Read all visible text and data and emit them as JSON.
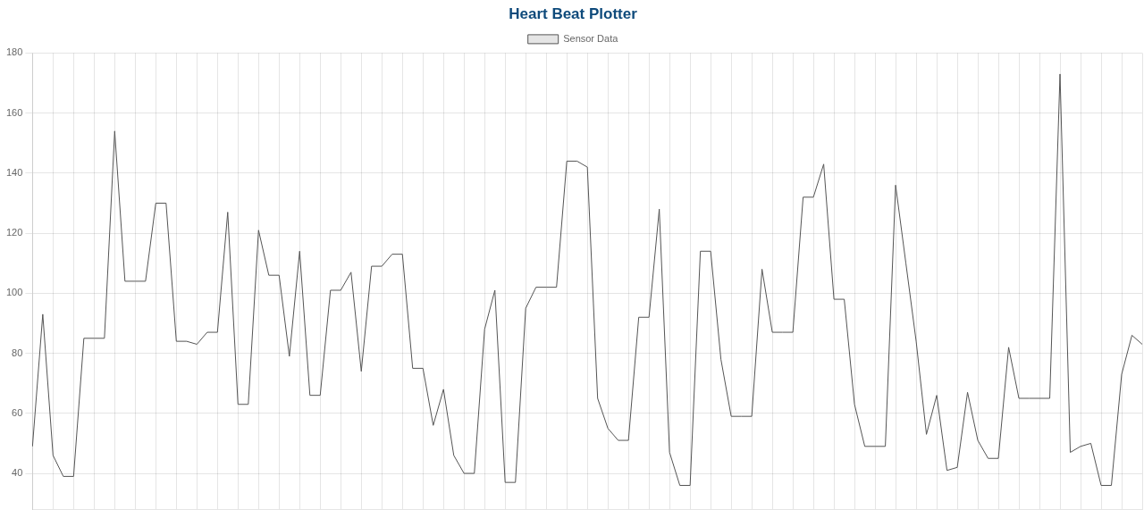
{
  "chart_data": {
    "type": "line",
    "title": "Heart Beat Plotter",
    "categories": [
      null,
      null,
      null,
      null,
      null,
      null,
      null,
      null,
      null,
      null,
      null,
      null,
      null,
      null,
      null,
      null,
      null,
      null,
      null,
      null,
      null,
      null,
      null,
      null,
      null,
      null,
      null,
      null,
      null,
      null,
      null,
      null,
      null,
      null,
      null,
      null,
      null,
      null,
      null,
      null,
      null,
      null,
      null,
      null,
      null,
      null,
      null,
      null,
      null,
      null,
      null,
      null,
      null,
      null,
      null,
      null,
      null,
      null,
      null,
      null,
      null,
      null,
      null,
      null,
      null,
      null,
      null,
      null,
      null,
      null,
      null,
      null,
      null,
      null,
      null,
      null,
      null,
      null,
      null,
      null,
      null,
      null,
      null,
      null,
      null,
      null,
      null,
      null,
      null,
      null,
      null,
      null,
      null,
      null,
      null,
      null,
      null,
      null,
      null,
      null,
      null,
      null,
      null,
      null,
      null,
      null,
      null,
      null,
      null
    ],
    "series": [
      {
        "name": "Sensor Data",
        "color": "#555555",
        "values": [
          49,
          93,
          46,
          39,
          39,
          85,
          85,
          85,
          154,
          104,
          104,
          104,
          130,
          130,
          84,
          84,
          83,
          87,
          87,
          127,
          63,
          63,
          121,
          106,
          106,
          79,
          114,
          66,
          66,
          101,
          101,
          107,
          74,
          109,
          109,
          113,
          113,
          75,
          75,
          56,
          68,
          46,
          40,
          40,
          88,
          101,
          37,
          37,
          95,
          102,
          102,
          102,
          144,
          144,
          142,
          65,
          55,
          51,
          51,
          92,
          92,
          128,
          47,
          36,
          36,
          114,
          114,
          78,
          59,
          59,
          59,
          108,
          87,
          87,
          87,
          132,
          132,
          143,
          98,
          98,
          63,
          49,
          49,
          49,
          136,
          110,
          84,
          53,
          66,
          41,
          42,
          67,
          51,
          45,
          45,
          82,
          65,
          65,
          65,
          65,
          173,
          47,
          49,
          50,
          36,
          36,
          73,
          86,
          83
        ]
      }
    ],
    "ylim": [
      28,
      180
    ],
    "yticks": [
      40,
      60,
      80,
      100,
      120,
      140,
      160,
      180
    ],
    "grid": true,
    "legend": "top",
    "marker": "none",
    "line_style": "solid",
    "tick_labels": "y"
  }
}
